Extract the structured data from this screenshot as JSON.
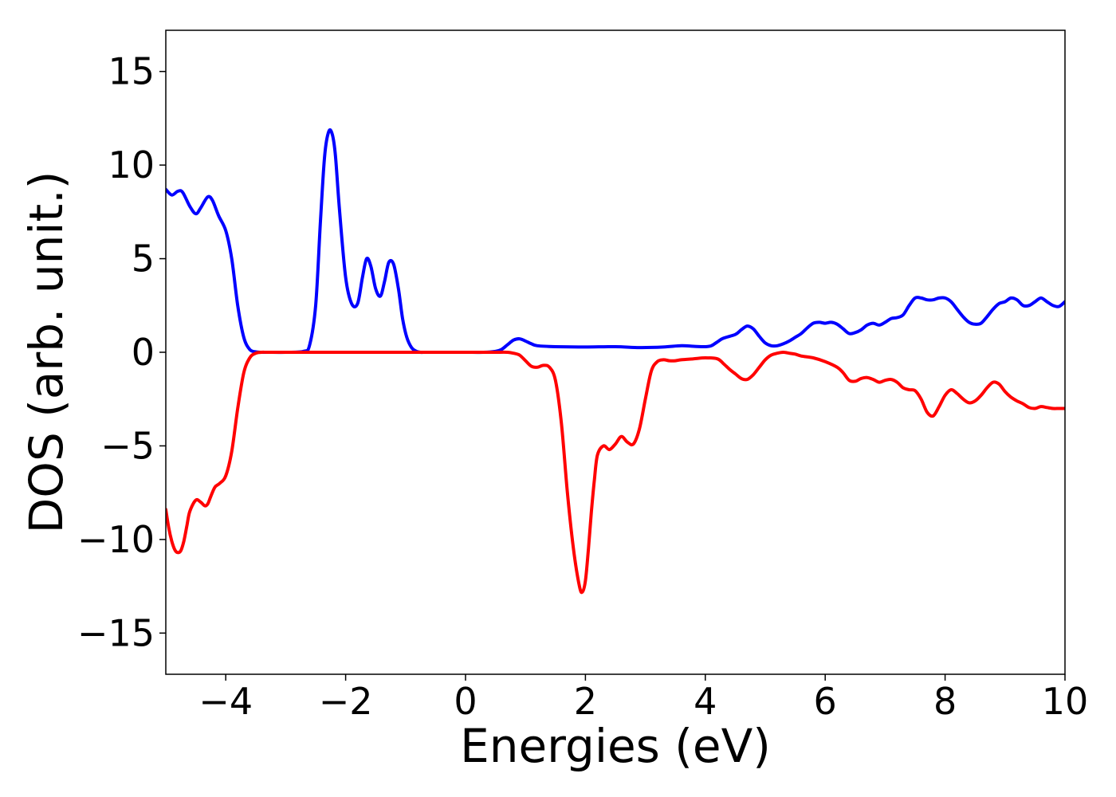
{
  "chart_data": {
    "type": "line",
    "title": "",
    "xlabel": "Energies (eV)",
    "ylabel": "DOS (arb. unit.)",
    "xlim": [
      -5,
      10
    ],
    "ylim": [
      -17.2,
      17.2
    ],
    "xticks": [
      -4,
      -2,
      0,
      2,
      4,
      6,
      8,
      10
    ],
    "xtick_labels": [
      "−4",
      "−2",
      "0",
      "2",
      "4",
      "6",
      "8",
      "10"
    ],
    "yticks": [
      -15,
      -10,
      -5,
      0,
      5,
      10,
      15
    ],
    "ytick_labels": [
      "−15",
      "−10",
      "−5",
      "0",
      "5",
      "10",
      "15"
    ],
    "grid": false,
    "legend": false,
    "series": [
      {
        "color": "#0000ff",
        "x": [
          -5.0,
          -4.9,
          -4.8,
          -4.72,
          -4.6,
          -4.5,
          -4.42,
          -4.3,
          -4.22,
          -4.12,
          -4.0,
          -3.9,
          -3.8,
          -3.7,
          -3.6,
          -3.5,
          -3.4,
          -3.3,
          -3.0,
          -2.7,
          -2.6,
          -2.5,
          -2.42,
          -2.35,
          -2.28,
          -2.22,
          -2.17,
          -2.1,
          -2.0,
          -1.9,
          -1.8,
          -1.72,
          -1.65,
          -1.58,
          -1.5,
          -1.42,
          -1.35,
          -1.28,
          -1.2,
          -1.12,
          -1.05,
          -0.98,
          -0.9,
          -0.82,
          -0.75,
          -0.68,
          -0.6,
          -0.5,
          -0.3,
          0.0,
          0.3,
          0.5,
          0.6,
          0.7,
          0.8,
          0.9,
          1.0,
          1.1,
          1.2,
          1.5,
          2.0,
          2.5,
          2.9,
          3.3,
          3.6,
          3.8,
          4.0,
          4.1,
          4.2,
          4.3,
          4.5,
          4.6,
          4.7,
          4.8,
          4.9,
          5.0,
          5.1,
          5.2,
          5.3,
          5.4,
          5.5,
          5.6,
          5.7,
          5.8,
          5.9,
          6.0,
          6.1,
          6.2,
          6.3,
          6.4,
          6.5,
          6.6,
          6.7,
          6.8,
          6.9,
          7.0,
          7.1,
          7.2,
          7.3,
          7.4,
          7.5,
          7.6,
          7.7,
          7.8,
          7.9,
          8.0,
          8.1,
          8.2,
          8.3,
          8.4,
          8.5,
          8.6,
          8.7,
          8.8,
          8.9,
          9.0,
          9.1,
          9.2,
          9.3,
          9.4,
          9.5,
          9.6,
          9.7,
          9.8,
          9.9,
          10.0
        ],
        "y": [
          8.7,
          8.4,
          8.6,
          8.55,
          7.8,
          7.4,
          7.7,
          8.3,
          8.1,
          7.3,
          6.5,
          5.0,
          2.5,
          0.8,
          0.15,
          0.02,
          0.0,
          0.0,
          0.0,
          0.05,
          0.4,
          2.5,
          7.0,
          10.5,
          11.8,
          11.6,
          10.5,
          7.5,
          4.0,
          2.6,
          2.6,
          4.0,
          5.0,
          4.6,
          3.4,
          3.0,
          3.8,
          4.8,
          4.7,
          3.4,
          1.8,
          0.8,
          0.25,
          0.05,
          0.0,
          0.0,
          0.0,
          0.0,
          0.0,
          0.0,
          0.0,
          0.05,
          0.15,
          0.4,
          0.65,
          0.72,
          0.6,
          0.45,
          0.35,
          0.3,
          0.28,
          0.3,
          0.25,
          0.28,
          0.35,
          0.32,
          0.3,
          0.35,
          0.55,
          0.75,
          0.95,
          1.2,
          1.4,
          1.25,
          0.85,
          0.5,
          0.35,
          0.35,
          0.45,
          0.6,
          0.8,
          1.0,
          1.3,
          1.55,
          1.6,
          1.55,
          1.6,
          1.5,
          1.25,
          1.0,
          1.05,
          1.2,
          1.45,
          1.55,
          1.45,
          1.6,
          1.8,
          1.85,
          2.0,
          2.5,
          2.9,
          2.9,
          2.8,
          2.8,
          2.9,
          2.9,
          2.7,
          2.3,
          1.9,
          1.6,
          1.5,
          1.55,
          1.9,
          2.3,
          2.6,
          2.7,
          2.9,
          2.8,
          2.5,
          2.5,
          2.7,
          2.9,
          2.7,
          2.5,
          2.45,
          2.7
        ]
      },
      {
        "color": "#ff0000",
        "x": [
          -5.0,
          -4.95,
          -4.9,
          -4.85,
          -4.8,
          -4.75,
          -4.7,
          -4.65,
          -4.6,
          -4.5,
          -4.42,
          -4.35,
          -4.3,
          -4.25,
          -4.18,
          -4.1,
          -4.0,
          -3.9,
          -3.8,
          -3.7,
          -3.6,
          -3.5,
          -3.4,
          -3.3,
          -3.0,
          0.0,
          0.3,
          0.5,
          0.7,
          0.8,
          0.9,
          1.0,
          1.1,
          1.2,
          1.3,
          1.4,
          1.5,
          1.6,
          1.7,
          1.8,
          1.9,
          1.95,
          2.0,
          2.05,
          2.1,
          2.15,
          2.2,
          2.3,
          2.4,
          2.5,
          2.6,
          2.7,
          2.8,
          2.9,
          3.0,
          3.1,
          3.2,
          3.3,
          3.4,
          3.5,
          3.6,
          3.8,
          4.0,
          4.2,
          4.3,
          4.4,
          4.5,
          4.6,
          4.7,
          4.8,
          4.9,
          5.0,
          5.1,
          5.2,
          5.3,
          5.4,
          5.5,
          5.6,
          5.8,
          6.0,
          6.2,
          6.3,
          6.4,
          6.5,
          6.6,
          6.7,
          6.8,
          6.9,
          7.0,
          7.1,
          7.2,
          7.3,
          7.4,
          7.5,
          7.6,
          7.7,
          7.8,
          7.9,
          8.0,
          8.1,
          8.2,
          8.3,
          8.4,
          8.5,
          8.6,
          8.7,
          8.8,
          8.9,
          9.0,
          9.1,
          9.2,
          9.3,
          9.4,
          9.5,
          9.6,
          9.7,
          9.8,
          9.9,
          10.0
        ],
        "y": [
          -8.4,
          -9.4,
          -10.1,
          -10.55,
          -10.7,
          -10.6,
          -10.1,
          -9.3,
          -8.5,
          -7.9,
          -8.0,
          -8.2,
          -8.1,
          -7.7,
          -7.2,
          -7.0,
          -6.6,
          -5.3,
          -3.0,
          -1.1,
          -0.3,
          -0.05,
          0.0,
          0.0,
          0.0,
          0.0,
          0.0,
          0.0,
          0.0,
          -0.05,
          -0.15,
          -0.45,
          -0.75,
          -0.8,
          -0.7,
          -0.8,
          -1.5,
          -3.8,
          -7.5,
          -10.5,
          -12.5,
          -12.8,
          -12.2,
          -10.5,
          -8.5,
          -6.8,
          -5.5,
          -5.0,
          -5.2,
          -4.9,
          -4.5,
          -4.8,
          -4.9,
          -4.1,
          -2.5,
          -1.0,
          -0.5,
          -0.4,
          -0.45,
          -0.45,
          -0.4,
          -0.35,
          -0.3,
          -0.35,
          -0.6,
          -0.9,
          -1.15,
          -1.4,
          -1.45,
          -1.2,
          -0.8,
          -0.4,
          -0.15,
          -0.05,
          0.0,
          -0.05,
          -0.1,
          -0.2,
          -0.3,
          -0.5,
          -0.8,
          -1.1,
          -1.5,
          -1.55,
          -1.4,
          -1.35,
          -1.45,
          -1.6,
          -1.5,
          -1.45,
          -1.6,
          -1.9,
          -2.0,
          -2.05,
          -2.5,
          -3.2,
          -3.4,
          -2.9,
          -2.3,
          -2.0,
          -2.2,
          -2.5,
          -2.7,
          -2.6,
          -2.3,
          -1.9,
          -1.6,
          -1.7,
          -2.1,
          -2.4,
          -2.6,
          -2.75,
          -2.95,
          -3.0,
          -2.9,
          -2.95,
          -3.0,
          -3.0,
          -3.0
        ]
      }
    ]
  }
}
